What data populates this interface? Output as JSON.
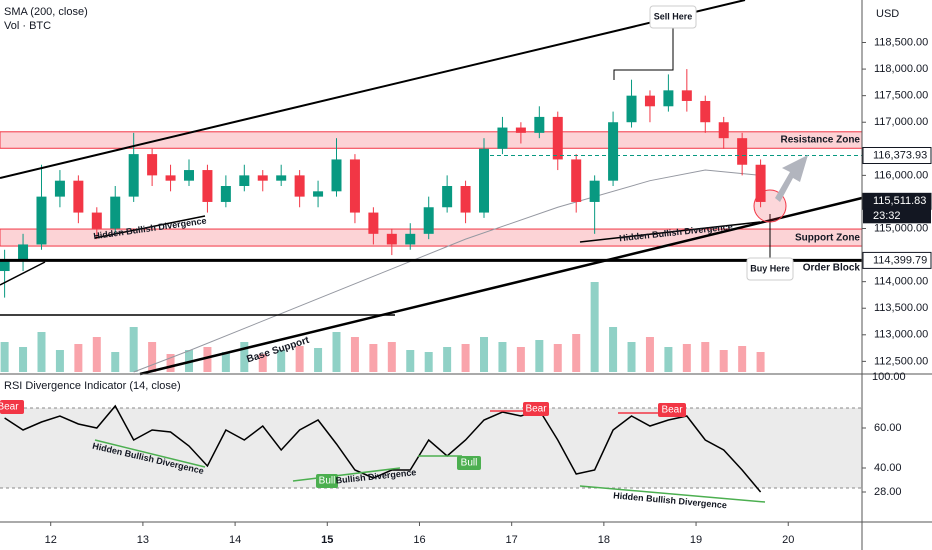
{
  "chart_data": {
    "type": "candlestick",
    "indicator_title": "SMA (200, close)",
    "volume_title": "Vol · BTC",
    "currency": "USD",
    "xlim": [
      11.45,
      20.8
    ],
    "xticks": [
      12,
      13,
      14,
      15,
      16,
      17,
      18,
      19,
      20
    ],
    "xtick_emphasis": 15,
    "ylim": [
      112300,
      119300
    ],
    "yticks": [
      {
        "value": 118500,
        "label": "118,500.00"
      },
      {
        "value": 118000,
        "label": "118,000.00"
      },
      {
        "value": 117500,
        "label": "117,500.00"
      },
      {
        "value": 117000,
        "label": "117,000.00"
      },
      {
        "value": 116000,
        "label": "116,000.00"
      },
      {
        "value": 115000,
        "label": "115,000.00"
      },
      {
        "value": 114000,
        "label": "114,000.00"
      },
      {
        "value": 113500,
        "label": "113,500.00"
      },
      {
        "value": 113000,
        "label": "113,000.00"
      },
      {
        "value": 112500,
        "label": "112,500.00"
      }
    ],
    "up_color": "#089981",
    "down_color": "#f23645",
    "x": [
      11.5,
      11.7,
      11.9,
      12.1,
      12.3,
      12.5,
      12.7,
      12.9,
      13.1,
      13.3,
      13.5,
      13.7,
      13.9,
      14.1,
      14.3,
      14.5,
      14.7,
      14.9,
      15.1,
      15.3,
      15.5,
      15.7,
      15.9,
      16.1,
      16.3,
      16.5,
      16.7,
      16.9,
      17.1,
      17.3,
      17.5,
      17.7,
      17.9,
      18.1,
      18.3,
      18.5,
      18.7,
      18.9,
      19.1,
      19.3,
      19.5,
      19.7
    ],
    "open": [
      114200,
      114400,
      114700,
      115600,
      115900,
      115300,
      115000,
      115600,
      116400,
      116000,
      115900,
      116100,
      115500,
      115800,
      116000,
      115900,
      116000,
      115600,
      115700,
      116300,
      115300,
      114900,
      114700,
      114900,
      115400,
      115800,
      115300,
      116500,
      116900,
      116800,
      117100,
      116300,
      115500,
      115900,
      117000,
      117500,
      117300,
      117600,
      117400,
      117000,
      116700,
      116200
    ],
    "high": [
      114600,
      114900,
      116200,
      116100,
      116000,
      115400,
      115800,
      116800,
      116500,
      116200,
      116300,
      116200,
      116000,
      116200,
      116100,
      116200,
      116100,
      115900,
      116700,
      116400,
      115400,
      115000,
      115100,
      115600,
      116000,
      115900,
      116700,
      117100,
      117000,
      117300,
      117200,
      116400,
      116000,
      117200,
      117800,
      117600,
      117900,
      118000,
      117500,
      117100,
      116800,
      116300
    ],
    "low": [
      113700,
      114200,
      114600,
      115400,
      115100,
      114800,
      114900,
      115500,
      115800,
      115700,
      115800,
      115300,
      115400,
      115700,
      115700,
      115800,
      115400,
      115400,
      115600,
      115100,
      114700,
      114500,
      114600,
      114800,
      115300,
      115100,
      115200,
      116400,
      116600,
      116700,
      116100,
      115300,
      114900,
      115800,
      116900,
      117000,
      117200,
      117200,
      116800,
      116500,
      116000,
      115400
    ],
    "close": [
      114400,
      114700,
      115600,
      115900,
      115300,
      115000,
      115600,
      116400,
      116000,
      115900,
      116100,
      115500,
      115800,
      116000,
      115900,
      116000,
      115600,
      115700,
      116300,
      115300,
      114900,
      114700,
      114900,
      115400,
      115800,
      115300,
      116500,
      116900,
      116800,
      117100,
      116300,
      115500,
      115900,
      117000,
      117500,
      117300,
      117600,
      117400,
      117000,
      116700,
      116200,
      115500
    ],
    "volume_lim": [
      0,
      100
    ],
    "volume": [
      30,
      25,
      40,
      22,
      28,
      35,
      20,
      45,
      30,
      18,
      22,
      25,
      20,
      30,
      18,
      22,
      26,
      24,
      40,
      35,
      28,
      30,
      22,
      20,
      25,
      28,
      35,
      30,
      25,
      32,
      28,
      38,
      90,
      45,
      30,
      35,
      25,
      28,
      30,
      22,
      26,
      20
    ],
    "volume_scale_label": "100.00",
    "sma_x": [
      12.9,
      13.5,
      14.5,
      15.5,
      16.5,
      17.5,
      18.5,
      19.1,
      19.7
    ],
    "sma": [
      112300,
      112700,
      113400,
      114100,
      114800,
      115400,
      115900,
      116100,
      116000
    ],
    "zones": {
      "resistance": [
        116510,
        116820
      ],
      "support": [
        114670,
        114990
      ]
    },
    "order_block": 114399.79,
    "price_labels": {
      "level": {
        "value": 116373.93,
        "label": "116,373.93"
      },
      "last": {
        "value": 115511.83,
        "label": "115,511.83"
      },
      "countdown": "23:32",
      "order_block": {
        "value": 114399.79,
        "label": "114,399.79"
      }
    },
    "annotations": {
      "sell": "Sell Here",
      "buy": "Buy Here",
      "resistance": "Resistance Zone",
      "support": "Support Zone",
      "order_block": "Order Block",
      "hidden1": "Hidden Bullish Divergence",
      "hidden2": "Hidden Bullish Divergence",
      "base": "Base Support"
    },
    "rsi": {
      "title": "RSI Divergence Indicator (14, close)",
      "ylim": [
        14,
        86
      ],
      "band": [
        30,
        70
      ],
      "yticks": [
        {
          "value": 60,
          "label": "60.00"
        },
        {
          "value": 40,
          "label": "40.00"
        },
        {
          "value": 28,
          "label": "28.00"
        }
      ],
      "values": [
        65,
        59,
        63,
        66,
        62,
        60,
        71,
        54,
        59,
        58,
        51,
        41,
        59,
        54,
        61,
        49,
        59,
        64,
        52,
        39,
        35,
        39,
        39,
        54,
        46,
        54,
        64,
        68,
        66,
        69,
        54,
        37,
        39,
        59,
        66,
        61,
        64,
        66,
        54,
        49,
        39,
        28
      ],
      "labels": {
        "bear1": "Bear",
        "bear2": "Bear",
        "bear3": "Bear",
        "bull1": "Bull",
        "bull2": "Bull",
        "hidden1": "Hidden Bullish Divergence",
        "bullish": "Bullish Divergence",
        "hidden2": "Hidden Bullish Divergence"
      }
    }
  }
}
